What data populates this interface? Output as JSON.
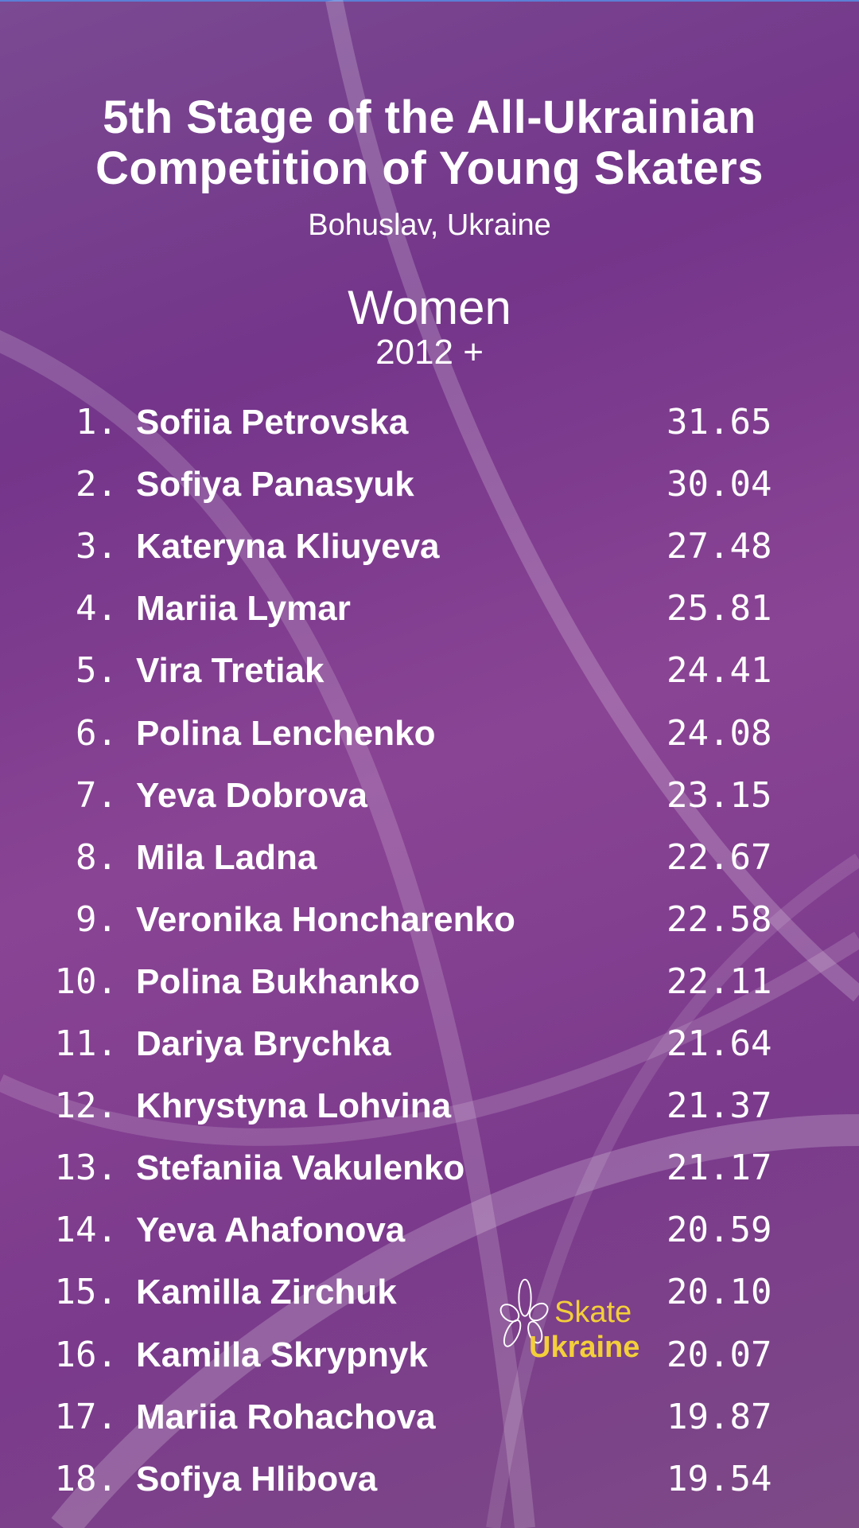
{
  "header": {
    "title_line1": "5th Stage of the All-Ukrainian",
    "title_line2": "Competition of Young Skaters",
    "location": "Bohuslav, Ukraine",
    "category": "Women",
    "age_group": "2012 +"
  },
  "results": [
    {
      "rank": "1.",
      "name": "Sofiia Petrovska",
      "score": "31.65"
    },
    {
      "rank": "2.",
      "name": "Sofiya Panasyuk",
      "score": "30.04"
    },
    {
      "rank": "3.",
      "name": "Kateryna Kliuyeva",
      "score": "27.48"
    },
    {
      "rank": "4.",
      "name": "Mariia Lymar",
      "score": "25.81"
    },
    {
      "rank": "5.",
      "name": "Vira Tretiak",
      "score": "24.41"
    },
    {
      "rank": "6.",
      "name": "Polina Lenchenko",
      "score": "24.08"
    },
    {
      "rank": "7.",
      "name": "Yeva Dobrova",
      "score": "23.15"
    },
    {
      "rank": "8.",
      "name": "Mila Ladna",
      "score": "22.67"
    },
    {
      "rank": "9.",
      "name": "Veronika Honcharenko",
      "score": "22.58"
    },
    {
      "rank": "10.",
      "name": "Polina Bukhanko",
      "score": "22.11"
    },
    {
      "rank": "11.",
      "name": "Dariya Brychka",
      "score": "21.64"
    },
    {
      "rank": "12.",
      "name": "Khrystyna Lohvina",
      "score": "21.37"
    },
    {
      "rank": "13.",
      "name": "Stefaniia Vakulenko",
      "score": "21.17"
    },
    {
      "rank": "14.",
      "name": "Yeva Ahafonova",
      "score": "20.59"
    },
    {
      "rank": "15.",
      "name": "Kamilla Zirchuk",
      "score": "20.10"
    },
    {
      "rank": "16.",
      "name": "Kamilla Skrypnyk",
      "score": "20.07"
    },
    {
      "rank": "17.",
      "name": "Mariia Rohachova",
      "score": "19.87"
    },
    {
      "rank": "18.",
      "name": "Sofiya Hlibova",
      "score": "19.54"
    }
  ],
  "logo": {
    "line1": "Skate",
    "line2": "Ukraine",
    "color": "#f3cf3a"
  },
  "colors": {
    "background": "#7a3a8c",
    "text": "#ffffff"
  }
}
